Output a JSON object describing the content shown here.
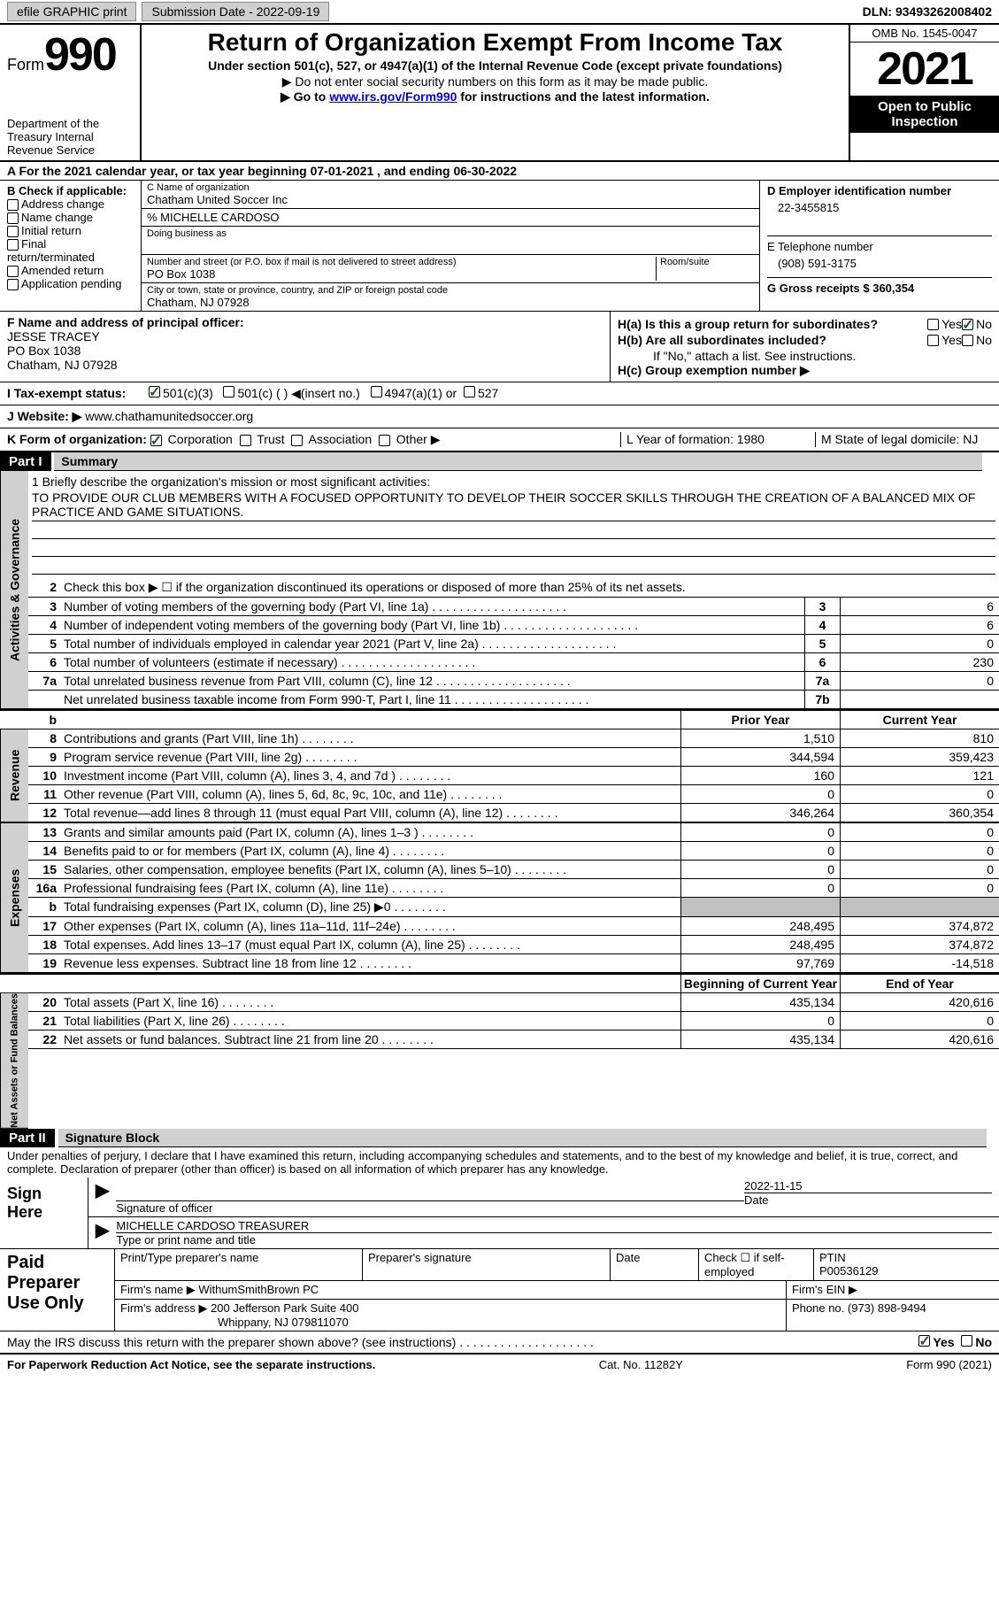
{
  "topbar": {
    "efile": "efile GRAPHIC print",
    "submission": "Submission Date - 2022-09-19",
    "dln": "DLN: 93493262008402"
  },
  "header": {
    "form_label": "Form",
    "form_num": "990",
    "dept": "Department of the Treasury Internal Revenue Service",
    "title": "Return of Organization Exempt From Income Tax",
    "sub1": "Under section 501(c), 527, or 4947(a)(1) of the Internal Revenue Code (except private foundations)",
    "sub2": "▶ Do not enter social security numbers on this form as it may be made public.",
    "sub3_pre": "▶ Go to ",
    "sub3_link": "www.irs.gov/Form990",
    "sub3_post": " for instructions and the latest information.",
    "omb": "OMB No. 1545-0047",
    "year": "2021",
    "inspect": "Open to Public Inspection"
  },
  "cal": "A For the 2021 calendar year, or tax year beginning 07-01-2021    , and ending 06-30-2022",
  "secB": {
    "label": "B Check if applicable:",
    "opts": [
      "Address change",
      "Name change",
      "Initial return",
      "Final return/terminated",
      "Amended return",
      "Application pending"
    ]
  },
  "secC": {
    "name_lbl": "C Name of organization",
    "name": "Chatham United Soccer Inc",
    "care_of": "% MICHELLE CARDOSO",
    "dba_lbl": "Doing business as",
    "street_lbl": "Number and street (or P.O. box if mail is not delivered to street address)",
    "room_lbl": "Room/suite",
    "street": "PO Box 1038",
    "city_lbl": "City or town, state or province, country, and ZIP or foreign postal code",
    "city": "Chatham, NJ  07928"
  },
  "secD": {
    "lbl": "D Employer identification number",
    "val": "22-3455815"
  },
  "secE": {
    "lbl": "E Telephone number",
    "val": "(908) 591-3175"
  },
  "secG": {
    "lbl": "G Gross receipts $ 360,354"
  },
  "secF": {
    "lbl": "F Name and address of principal officer:",
    "name": "JESSE TRACEY",
    "street": "PO Box 1038",
    "city": "Chatham, NJ  07928"
  },
  "secH": {
    "ha": "H(a)  Is this a group return for subordinates?",
    "hb": "H(b)  Are all subordinates included?",
    "hb_note": "If \"No,\" attach a list. See instructions.",
    "hc": "H(c)  Group exemption number ▶",
    "yes": "Yes",
    "no": "No"
  },
  "rowI": {
    "lbl": "I   Tax-exempt status:",
    "o1": "501(c)(3)",
    "o2": "501(c) (  ) ◀(insert no.)",
    "o3": "4947(a)(1) or",
    "o4": "527"
  },
  "rowJ": {
    "lbl": "J   Website: ▶",
    "val": "  www.chathamunitedsoccer.org"
  },
  "rowK": {
    "lbl": "K Form of organization:",
    "o1": "Corporation",
    "o2": "Trust",
    "o3": "Association",
    "o4": "Other ▶",
    "L": "L Year of formation: 1980",
    "M": "M State of legal domicile: NJ"
  },
  "part1": {
    "hdr": "Part I",
    "title": "Summary"
  },
  "mission": {
    "lbl": "1  Briefly describe the organization's mission or most significant activities:",
    "text": "TO PROVIDE OUR CLUB MEMBERS WITH A FOCUSED OPPORTUNITY TO DEVELOP THEIR SOCCER SKILLS THROUGH THE CREATION OF A BALANCED MIX OF PRACTICE AND GAME SITUATIONS."
  },
  "line2": "Check this box ▶ ☐  if the organization discontinued its operations or disposed of more than 25% of its net assets.",
  "sides": {
    "ag": "Activities & Governance",
    "rev": "Revenue",
    "exp": "Expenses",
    "na": "Net Assets or Fund Balances"
  },
  "cols": {
    "prior": "Prior Year",
    "current": "Current Year",
    "begin": "Beginning of Current Year",
    "end": "End of Year"
  },
  "gov": [
    {
      "n": "3",
      "d": "Number of voting members of the governing body (Part VI, line 1a)",
      "b": "3",
      "v": "6"
    },
    {
      "n": "4",
      "d": "Number of independent voting members of the governing body (Part VI, line 1b)",
      "b": "4",
      "v": "6"
    },
    {
      "n": "5",
      "d": "Total number of individuals employed in calendar year 2021 (Part V, line 2a)",
      "b": "5",
      "v": "0"
    },
    {
      "n": "6",
      "d": "Total number of volunteers (estimate if necessary)",
      "b": "6",
      "v": "230"
    },
    {
      "n": "7a",
      "d": "Total unrelated business revenue from Part VIII, column (C), line 12",
      "b": "7a",
      "v": "0"
    },
    {
      "n": "",
      "d": "Net unrelated business taxable income from Form 990-T, Part I, line 11",
      "b": "7b",
      "v": ""
    }
  ],
  "rev": [
    {
      "n": "8",
      "d": "Contributions and grants (Part VIII, line 1h)",
      "p": "1,510",
      "c": "810"
    },
    {
      "n": "9",
      "d": "Program service revenue (Part VIII, line 2g)",
      "p": "344,594",
      "c": "359,423"
    },
    {
      "n": "10",
      "d": "Investment income (Part VIII, column (A), lines 3, 4, and 7d )",
      "p": "160",
      "c": "121"
    },
    {
      "n": "11",
      "d": "Other revenue (Part VIII, column (A), lines 5, 6d, 8c, 9c, 10c, and 11e)",
      "p": "0",
      "c": "0"
    },
    {
      "n": "12",
      "d": "Total revenue—add lines 8 through 11 (must equal Part VIII, column (A), line 12)",
      "p": "346,264",
      "c": "360,354"
    }
  ],
  "exp": [
    {
      "n": "13",
      "d": "Grants and similar amounts paid (Part IX, column (A), lines 1–3 )",
      "p": "0",
      "c": "0"
    },
    {
      "n": "14",
      "d": "Benefits paid to or for members (Part IX, column (A), line 4)",
      "p": "0",
      "c": "0"
    },
    {
      "n": "15",
      "d": "Salaries, other compensation, employee benefits (Part IX, column (A), lines 5–10)",
      "p": "0",
      "c": "0"
    },
    {
      "n": "16a",
      "d": "Professional fundraising fees (Part IX, column (A), line 11e)",
      "p": "0",
      "c": "0"
    },
    {
      "n": "b",
      "d": "Total fundraising expenses (Part IX, column (D), line 25) ▶0",
      "p": "",
      "c": "",
      "shade": true
    },
    {
      "n": "17",
      "d": "Other expenses (Part IX, column (A), lines 11a–11d, 11f–24e)",
      "p": "248,495",
      "c": "374,872"
    },
    {
      "n": "18",
      "d": "Total expenses. Add lines 13–17 (must equal Part IX, column (A), line 25)",
      "p": "248,495",
      "c": "374,872"
    },
    {
      "n": "19",
      "d": "Revenue less expenses. Subtract line 18 from line 12",
      "p": "97,769",
      "c": "-14,518"
    }
  ],
  "na": [
    {
      "n": "20",
      "d": "Total assets (Part X, line 16)",
      "p": "435,134",
      "c": "420,616"
    },
    {
      "n": "21",
      "d": "Total liabilities (Part X, line 26)",
      "p": "0",
      "c": "0"
    },
    {
      "n": "22",
      "d": "Net assets or fund balances. Subtract line 21 from line 20",
      "p": "435,134",
      "c": "420,616"
    }
  ],
  "part2": {
    "hdr": "Part II",
    "title": "Signature Block"
  },
  "penalties": "Under penalties of perjury, I declare that I have examined this return, including accompanying schedules and statements, and to the best of my knowledge and belief, it is true, correct, and complete. Declaration of preparer (other than officer) is based on all information of which preparer has any knowledge.",
  "sign": {
    "here": "Sign Here",
    "sig_of": "Signature of officer",
    "date": "Date",
    "date_val": "2022-11-15",
    "name": "MICHELLE CARDOSO  TREASURER",
    "name_lbl": "Type or print name and title"
  },
  "paid": {
    "lbl": "Paid Preparer Use Only",
    "p1": "Print/Type preparer's name",
    "p2": "Preparer's signature",
    "p3": "Date",
    "p4": "Check ☐ if self-employed",
    "p5_lbl": "PTIN",
    "p5": "P00536129",
    "firm_lbl": "Firm's name    ▶ ",
    "firm": "WithumSmithBrown PC",
    "ein": "Firm's EIN ▶",
    "addr_lbl": "Firm's address ▶ ",
    "addr1": "200 Jefferson Park Suite 400",
    "addr2": "Whippany, NJ  079811070",
    "phone": "Phone no. (973) 898-9494"
  },
  "discuss": "May the IRS discuss this return with the preparer shown above? (see instructions)",
  "footer": {
    "left": "For Paperwork Reduction Act Notice, see the separate instructions.",
    "mid": "Cat. No. 11282Y",
    "right": "Form 990 (2021)"
  }
}
